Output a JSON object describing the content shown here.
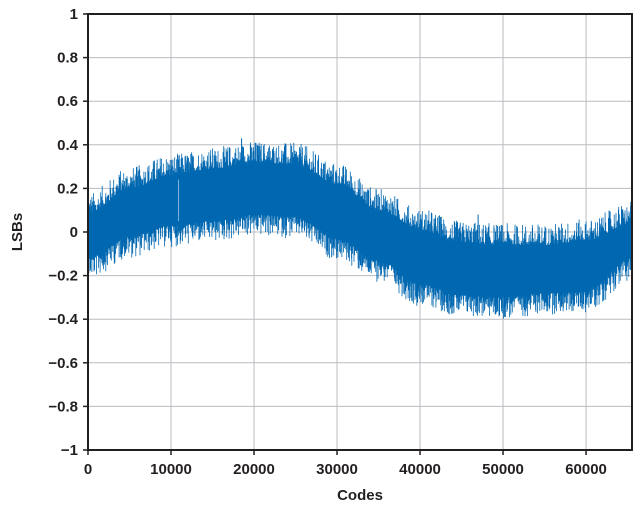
{
  "chart_data": {
    "type": "line",
    "xlabel": "Codes",
    "ylabel": "LSBs",
    "xlim": [
      0,
      65535
    ],
    "ylim": [
      -1,
      1
    ],
    "grid": true,
    "x_ticks": [
      0,
      10000,
      20000,
      30000,
      40000,
      50000,
      60000
    ],
    "x_tick_labels": [
      "0",
      "10000",
      "20000",
      "30000",
      "40000",
      "50000",
      "60000"
    ],
    "y_ticks": [
      1,
      0.8,
      0.6,
      0.4,
      0.2,
      0,
      -0.2,
      -0.4,
      -0.6,
      -0.8,
      -1
    ],
    "y_tick_labels": [
      "1",
      "0.8",
      "0.6",
      "0.4",
      "0.2",
      "0",
      "−0.2",
      "−0.4",
      "−0.6",
      "−0.8",
      "−1"
    ],
    "series": [
      {
        "color": "#0067b1",
        "description_points": {
          "x": [
            0,
            5000,
            10000,
            15000,
            20000,
            25000,
            30000,
            35000,
            40000,
            45000,
            50000,
            55000,
            60000,
            65535
          ],
          "y_center": [
            -0.02,
            0.08,
            0.13,
            0.16,
            0.19,
            0.17,
            0.08,
            -0.02,
            -0.12,
            -0.17,
            -0.18,
            -0.17,
            -0.16,
            -0.05
          ],
          "y_low": [
            -0.12,
            -0.02,
            0.03,
            0.05,
            0.08,
            0.07,
            -0.03,
            -0.13,
            -0.24,
            -0.29,
            -0.3,
            -0.28,
            -0.27,
            -0.12
          ],
          "y_high": [
            0.08,
            0.2,
            0.26,
            0.29,
            0.32,
            0.31,
            0.22,
            0.1,
            0.01,
            -0.05,
            -0.06,
            -0.06,
            -0.04,
            0.04
          ]
        },
        "peak_spikes": [
          {
            "x": 10900,
            "y": 0.24
          },
          {
            "x": 18500,
            "y": 0.43
          },
          {
            "x": 25500,
            "y": 0.39
          },
          {
            "x": 47000,
            "y": 0.08
          },
          {
            "x": 62000,
            "y": 0.03
          }
        ]
      }
    ]
  }
}
